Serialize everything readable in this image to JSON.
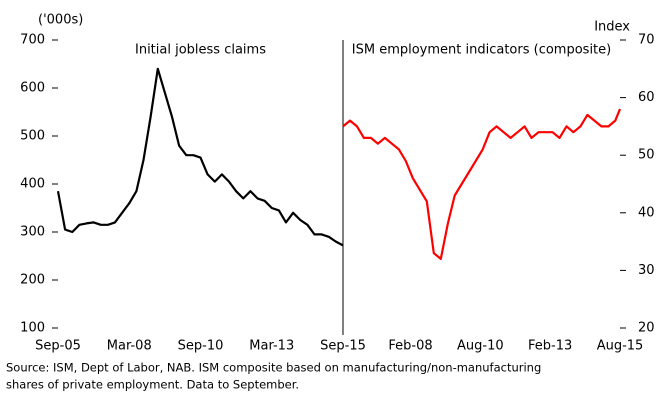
{
  "chart_data": [
    {
      "type": "line",
      "annotation": "Initial jobless claims",
      "y_label": "('000s)",
      "x": [
        "Sep-05",
        "Dec-05",
        "Mar-06",
        "Jun-06",
        "Sep-06",
        "Dec-06",
        "Mar-07",
        "Jun-07",
        "Sep-07",
        "Dec-07",
        "Mar-08",
        "Jun-08",
        "Sep-08",
        "Dec-08",
        "Mar-09",
        "Jun-09",
        "Sep-09",
        "Dec-09",
        "Mar-10",
        "Jun-10",
        "Sep-10",
        "Dec-10",
        "Mar-11",
        "Jun-11",
        "Sep-11",
        "Dec-11",
        "Mar-12",
        "Jun-12",
        "Sep-12",
        "Dec-12",
        "Mar-13",
        "Jun-13",
        "Sep-13",
        "Dec-13",
        "Mar-14",
        "Jun-14",
        "Sep-14",
        "Dec-14",
        "Mar-15",
        "Jun-15",
        "Sep-15"
      ],
      "series": [
        {
          "name": "Initial jobless claims",
          "color": "#000000",
          "values": [
            385,
            305,
            300,
            315,
            318,
            320,
            315,
            315,
            320,
            340,
            360,
            385,
            450,
            540,
            640,
            590,
            540,
            480,
            460,
            460,
            455,
            420,
            405,
            420,
            405,
            385,
            370,
            385,
            370,
            365,
            350,
            345,
            320,
            340,
            325,
            315,
            295,
            295,
            290,
            280,
            272
          ]
        }
      ],
      "xlim": [
        "Sep-05",
        "Sep-15"
      ],
      "xticks": [
        "Sep-05",
        "Mar-08",
        "Sep-10",
        "Mar-13",
        "Sep-15"
      ],
      "ylim": [
        100,
        700
      ],
      "yticks": [
        100,
        200,
        300,
        400,
        500,
        600,
        700
      ]
    },
    {
      "type": "line",
      "annotation": "ISM employment indicators (composite)",
      "y_label": "Index",
      "x": [
        "Sep-05",
        "Dec-05",
        "Mar-06",
        "Jun-06",
        "Sep-06",
        "Dec-06",
        "Mar-07",
        "Jun-07",
        "Sep-07",
        "Dec-07",
        "Mar-08",
        "Jun-08",
        "Sep-08",
        "Dec-08",
        "Mar-09",
        "Jun-09",
        "Sep-09",
        "Dec-09",
        "Mar-10",
        "Jun-10",
        "Sep-10",
        "Dec-10",
        "Mar-11",
        "Jun-11",
        "Sep-11",
        "Dec-11",
        "Mar-12",
        "Jun-12",
        "Sep-12",
        "Dec-12",
        "Mar-13",
        "Jun-13",
        "Sep-13",
        "Dec-13",
        "Mar-14",
        "Jun-14",
        "Sep-14",
        "Dec-14",
        "Mar-15",
        "Jun-15",
        "Aug-15"
      ],
      "series": [
        {
          "name": "ISM employment indicators (composite)",
          "color": "#ff0000",
          "axis": "y2",
          "values": [
            55,
            56,
            55,
            53,
            53,
            52,
            53,
            52,
            51,
            49,
            46,
            44,
            42,
            33,
            32,
            38,
            43,
            45,
            47,
            49,
            51,
            54,
            55,
            54,
            53,
            54,
            55,
            53,
            54,
            54,
            54,
            53,
            55,
            54,
            55,
            57,
            56,
            55,
            55,
            56,
            58
          ]
        }
      ],
      "xlim": [
        "Sep-05",
        "Aug-15"
      ],
      "xticks": [
        "Feb-08",
        "Aug-10",
        "Feb-13",
        "Aug-15"
      ],
      "y2lim": [
        20,
        70
      ],
      "y2ticks": [
        20,
        30,
        40,
        50,
        60,
        70
      ]
    }
  ],
  "notes": [
    "Source: ISM, Dept of Labor, NAB. ISM composite based on manufacturing/non-manufacturing",
    "shares of private employment. Data to September."
  ]
}
